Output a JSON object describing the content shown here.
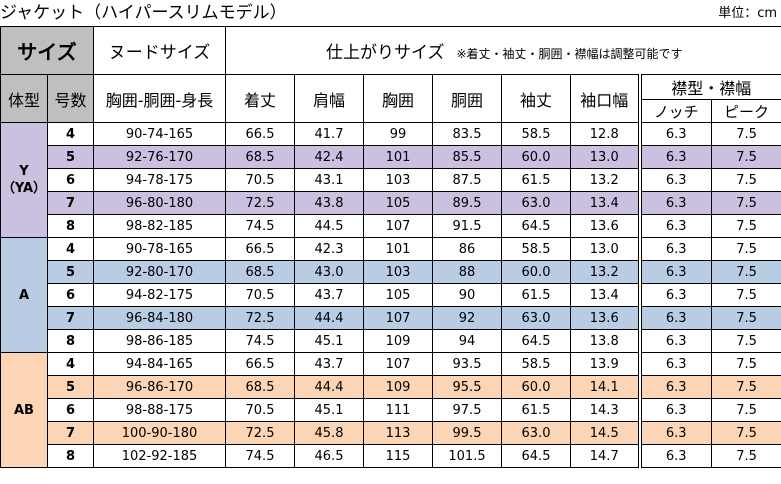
{
  "title": "ジャケット（ハイパースリムモデル）",
  "unit": "単位：cm",
  "header": {
    "size": "サイズ",
    "nude_size": "ヌードサイズ",
    "finished_size": "仕上がりサイズ",
    "finished_note": "※着丈・袖丈・胴囲・襟幅は調整可能です",
    "body_type": "体型",
    "size_no": "号数",
    "measure": "胸囲-胴囲-身長",
    "columns": [
      "着丈",
      "肩幅",
      "胸囲",
      "胴囲",
      "袖丈",
      "袖口幅"
    ],
    "lapel_group": "襟型・襟幅",
    "lapel_types": [
      "ノッチ",
      "ピーク"
    ]
  },
  "groups": [
    {
      "type": "Y\n（YA）",
      "color": "#cbc0e0",
      "rows": [
        {
          "no": "4",
          "nude": "90-74-165",
          "values": [
            "66.5",
            "41.7",
            "99",
            "83.5",
            "58.5",
            "12.8"
          ],
          "notch": "6.3",
          "peak": "7.5"
        },
        {
          "no": "5",
          "nude": "92-76-170",
          "values": [
            "68.5",
            "42.4",
            "101",
            "85.5",
            "60.0",
            "13.0"
          ],
          "notch": "6.3",
          "peak": "7.5"
        },
        {
          "no": "6",
          "nude": "94-78-175",
          "values": [
            "70.5",
            "43.1",
            "103",
            "87.5",
            "61.5",
            "13.2"
          ],
          "notch": "6.3",
          "peak": "7.5"
        },
        {
          "no": "7",
          "nude": "96-80-180",
          "values": [
            "72.5",
            "43.8",
            "105",
            "89.5",
            "63.0",
            "13.4"
          ],
          "notch": "6.3",
          "peak": "7.5"
        },
        {
          "no": "8",
          "nude": "98-82-185",
          "values": [
            "74.5",
            "44.5",
            "107",
            "91.5",
            "64.5",
            "13.6"
          ],
          "notch": "6.3",
          "peak": "7.5"
        }
      ]
    },
    {
      "type": "A",
      "color": "#b8cce4",
      "rows": [
        {
          "no": "4",
          "nude": "90-78-165",
          "values": [
            "66.5",
            "42.3",
            "101",
            "86",
            "58.5",
            "13.0"
          ],
          "notch": "6.3",
          "peak": "7.5"
        },
        {
          "no": "5",
          "nude": "92-80-170",
          "values": [
            "68.5",
            "43.0",
            "103",
            "88",
            "60.0",
            "13.2"
          ],
          "notch": "6.3",
          "peak": "7.5"
        },
        {
          "no": "6",
          "nude": "94-82-175",
          "values": [
            "70.5",
            "43.7",
            "105",
            "90",
            "61.5",
            "13.4"
          ],
          "notch": "6.3",
          "peak": "7.5"
        },
        {
          "no": "7",
          "nude": "96-84-180",
          "values": [
            "72.5",
            "44.4",
            "107",
            "92",
            "63.0",
            "13.6"
          ],
          "notch": "6.3",
          "peak": "7.5"
        },
        {
          "no": "8",
          "nude": "98-86-185",
          "values": [
            "74.5",
            "45.1",
            "109",
            "94",
            "64.5",
            "13.8"
          ],
          "notch": "6.3",
          "peak": "7.5"
        }
      ]
    },
    {
      "type": "AB",
      "color": "#fbd5b5",
      "rows": [
        {
          "no": "4",
          "nude": "94-84-165",
          "values": [
            "66.5",
            "43.7",
            "107",
            "93.5",
            "58.5",
            "13.9"
          ],
          "notch": "6.3",
          "peak": "7.5"
        },
        {
          "no": "5",
          "nude": "96-86-170",
          "values": [
            "68.5",
            "44.4",
            "109",
            "95.5",
            "60.0",
            "14.1"
          ],
          "notch": "6.3",
          "peak": "7.5"
        },
        {
          "no": "6",
          "nude": "98-88-175",
          "values": [
            "70.5",
            "45.1",
            "111",
            "97.5",
            "61.5",
            "14.3"
          ],
          "notch": "6.3",
          "peak": "7.5"
        },
        {
          "no": "7",
          "nude": "100-90-180",
          "values": [
            "72.5",
            "45.8",
            "113",
            "99.5",
            "63.0",
            "14.5"
          ],
          "notch": "6.3",
          "peak": "7.5"
        },
        {
          "no": "8",
          "nude": "102-92-185",
          "values": [
            "74.5",
            "46.5",
            "115",
            "101.5",
            "64.5",
            "14.7"
          ],
          "notch": "6.3",
          "peak": "7.5"
        }
      ]
    }
  ]
}
